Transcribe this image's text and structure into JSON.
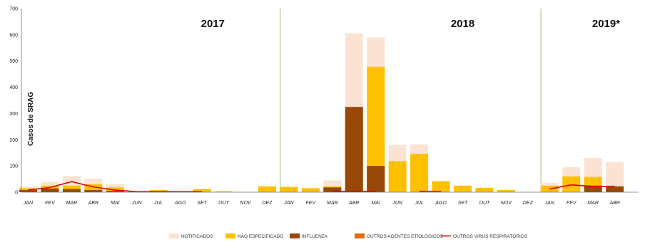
{
  "chart_data": {
    "type": "bar",
    "ylabel": "Casos de SRAG",
    "ylim": [
      0,
      700
    ],
    "yticks": [
      0,
      100,
      200,
      300,
      400,
      500,
      600,
      700
    ],
    "grid": false,
    "legend_position": "bottom",
    "colors": {
      "notificados": "#fbe3d3",
      "nao_especificado": "#ffc000",
      "influenza": "#974706",
      "outros_agentes": "#e36c09",
      "outros_virus": "#e00000",
      "year_divider": "#c4bd97"
    },
    "years": [
      {
        "label": "2017",
        "start": 0,
        "end": 11
      },
      {
        "label": "2018",
        "start": 12,
        "end": 23
      },
      {
        "label": "2019*",
        "start": 24,
        "end": 27
      }
    ],
    "categories": [
      "JAN",
      "FEV",
      "MAR",
      "ABR",
      "MAI",
      "JUN",
      "JUL",
      "AGO",
      "SET",
      "OUT",
      "NOV",
      "DEZ",
      "JAN",
      "FEV",
      "MAR",
      "ABR",
      "MAI",
      "JUN",
      "JUL",
      "AGO",
      "SET",
      "OUT",
      "NOV",
      "DEZ",
      "JAN",
      "FEV",
      "MAR",
      "ABR"
    ],
    "series": [
      {
        "name": "NOTIFICADOS",
        "key": "notificados",
        "kind": "bar",
        "values": [
          22,
          40,
          62,
          52,
          30,
          3,
          8,
          3,
          12,
          4,
          1,
          22,
          20,
          16,
          45,
          605,
          590,
          180,
          182,
          42,
          25,
          17,
          9,
          0,
          35,
          95,
          130,
          115
        ]
      },
      {
        "name": "NÃO ESPECIFICADO",
        "key": "nao_especificado",
        "kind": "bar",
        "values": [
          15,
          25,
          25,
          30,
          18,
          2,
          8,
          2,
          12,
          3,
          1,
          22,
          20,
          15,
          22,
          270,
          478,
          118,
          146,
          42,
          25,
          16,
          8,
          0,
          25,
          60,
          58,
          0
        ]
      },
      {
        "name": "INFLUENZA",
        "key": "influenza",
        "kind": "bar",
        "values": [
          8,
          14,
          12,
          8,
          5,
          0,
          0,
          0,
          0,
          0,
          0,
          0,
          0,
          0,
          18,
          325,
          100,
          0,
          0,
          0,
          0,
          0,
          0,
          0,
          0,
          0,
          25,
          22
        ]
      },
      {
        "name": "OUTROS AGENTES ETIOLÓGICOS",
        "key": "outros_agentes",
        "kind": "bar",
        "values": [
          0,
          0,
          0,
          0,
          0,
          0,
          0,
          0,
          0,
          0,
          0,
          0,
          0,
          0,
          0,
          0,
          0,
          0,
          0,
          0,
          0,
          0,
          0,
          0,
          0,
          0,
          0,
          0
        ]
      },
      {
        "name": "OUTROS VIRUS RESPIRATÓRIOS",
        "key": "outros_virus",
        "kind": "line",
        "values": [
          8,
          18,
          40,
          20,
          8,
          2,
          2,
          2,
          2,
          null,
          null,
          null,
          null,
          null,
          3,
          3,
          3,
          null,
          3,
          2,
          null,
          null,
          null,
          null,
          12,
          28,
          22,
          22
        ]
      }
    ]
  }
}
